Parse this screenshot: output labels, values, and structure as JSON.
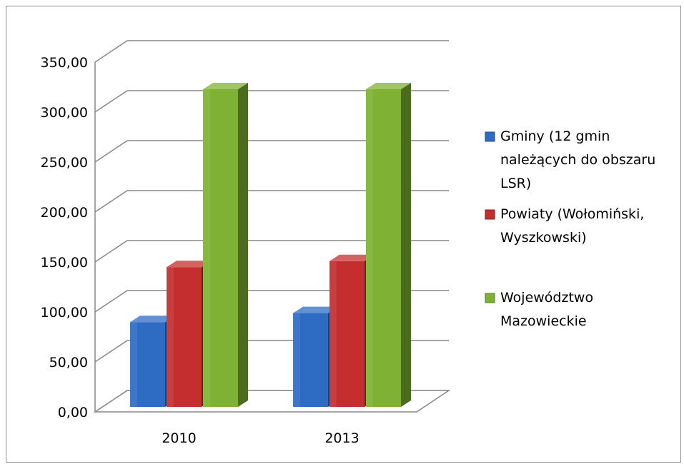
{
  "chart_data": {
    "type": "bar",
    "categories": [
      "2010",
      "2013"
    ],
    "series": [
      {
        "name": "Gminy (12 gmin należących do obszaru LSR)",
        "values": [
          97,
          106
        ],
        "color": "#2e6cc4"
      },
      {
        "name": "Powiaty (Wołomiński, Wyszkowski)",
        "values": [
          152,
          158
        ],
        "color": "#c42e2e"
      },
      {
        "name": "Województwo Mazowieckie",
        "values": [
          330,
          330
        ],
        "color": "#7fb234"
      }
    ],
    "yticks": [
      "0,00",
      "50,00",
      "100,00",
      "150,00",
      "200,00",
      "250,00",
      "300,00",
      "350,00"
    ],
    "ylim": [
      0,
      350
    ],
    "grid": true,
    "legend_position": "right",
    "title": "",
    "xlabel": "",
    "ylabel": ""
  }
}
